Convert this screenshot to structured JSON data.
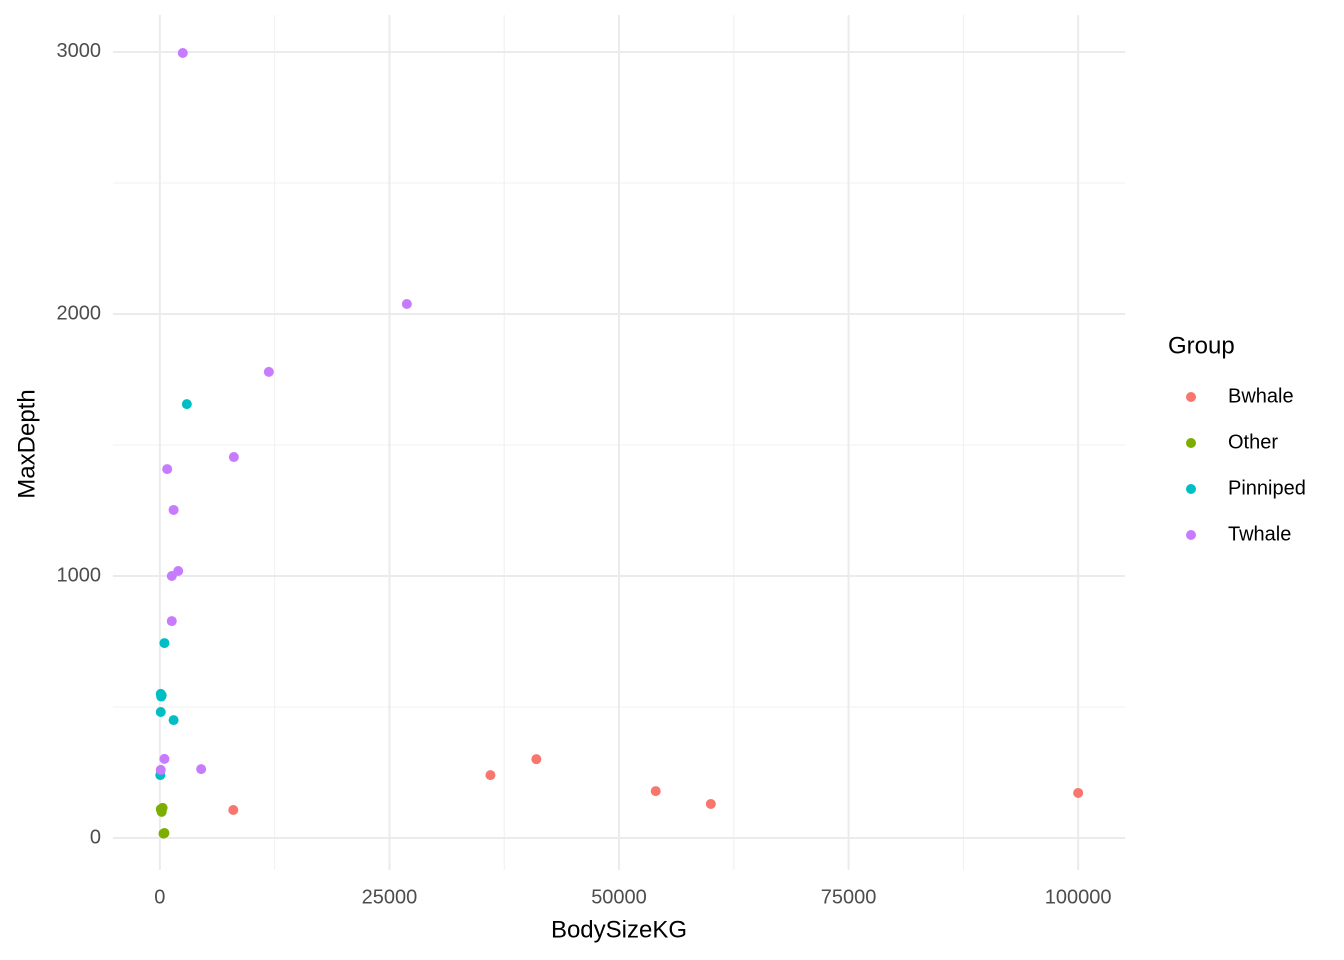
{
  "chart_data": {
    "type": "scatter",
    "x_label": "BodySizeKG",
    "y_label": "MaxDepth",
    "legend_title": "Group",
    "legend_position": "right",
    "grid": true,
    "xlim": [
      -5100,
      105100
    ],
    "ylim": [
      -122,
      3141
    ],
    "xticks": [
      0,
      25000,
      50000,
      75000,
      100000
    ],
    "yticks": [
      0,
      1000,
      2000,
      3000
    ],
    "series": [
      {
        "name": "Bwhale",
        "color": "#F8766D",
        "x": [
          8000,
          36000,
          41000,
          54000,
          60000,
          100000
        ],
        "values": [
          107,
          240,
          301,
          179,
          130,
          172
        ]
      },
      {
        "name": "Other",
        "color": "#7CAE00",
        "x": [
          100,
          200,
          300,
          500,
          400
        ],
        "values": [
          110,
          100,
          115,
          19,
          17
        ]
      },
      {
        "name": "Pinniped",
        "color": "#00BFC4",
        "x": [
          2940,
          500,
          100,
          150,
          200,
          100,
          1500,
          50
        ],
        "values": [
          1656,
          744,
          550,
          540,
          545,
          481,
          450,
          240
        ]
      },
      {
        "name": "Twhale",
        "color": "#C77CFF",
        "x": [
          2500,
          26900,
          11870,
          8060,
          800,
          1500,
          2000,
          1300,
          1300,
          500,
          4500,
          100
        ],
        "values": [
          2996,
          2038,
          1779,
          1454,
          1408,
          1252,
          1019,
          1000,
          828,
          302,
          263,
          260
        ]
      }
    ]
  }
}
